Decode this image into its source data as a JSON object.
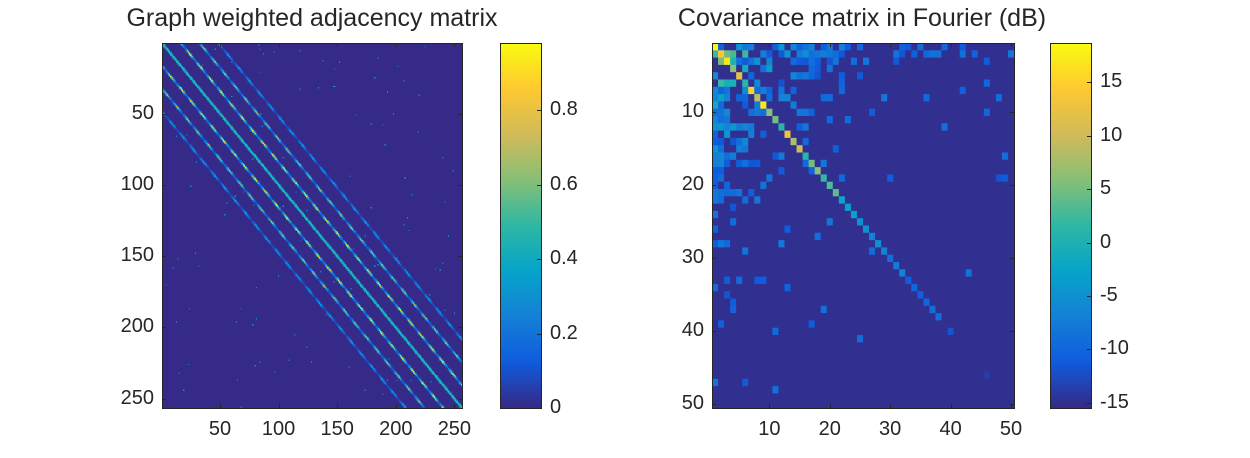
{
  "colors": {
    "colormap": "parula",
    "stops": [
      "#352a87",
      "#0f5cdd",
      "#1481d6",
      "#06a4ca",
      "#2eb7a4",
      "#87bf77",
      "#d1bb59",
      "#fec832",
      "#f9fb0e"
    ],
    "axis": "#262626"
  },
  "chart_data": [
    {
      "type": "heatmap",
      "title": "Graph weighted adjacency matrix",
      "rows": 256,
      "cols": 256,
      "xticks": [
        "50",
        "100",
        "150",
        "200",
        "250"
      ],
      "yticks": [
        "50",
        "100",
        "150",
        "200",
        "250"
      ],
      "xtick_values": [
        50,
        100,
        150,
        200,
        250
      ],
      "ytick_values": [
        50,
        100,
        150,
        200,
        250
      ],
      "structure": "banded symmetric matrix",
      "bands": [
        {
          "offset": 0,
          "value": 0.5
        },
        {
          "offset": 16,
          "value": 0.75
        },
        {
          "offset": 32,
          "value": 0.55
        },
        {
          "offset": 48,
          "value": 0.3
        }
      ],
      "background_value": 0,
      "colorbar": {
        "range": [
          0,
          0.98
        ],
        "ticks": [
          "0",
          "0.2",
          "0.4",
          "0.6",
          "0.8"
        ],
        "tick_values": [
          0,
          0.2,
          0.4,
          0.6,
          0.8
        ]
      }
    },
    {
      "type": "heatmap",
      "title": "Covariance matrix in Fourier (dB)",
      "rows": 50,
      "cols": 50,
      "xticks": [
        "10",
        "20",
        "30",
        "40",
        "50"
      ],
      "yticks": [
        "10",
        "20",
        "30",
        "40",
        "50"
      ],
      "xtick_values": [
        10,
        20,
        30,
        40,
        50
      ],
      "ytick_values": [
        10,
        20,
        30,
        40,
        50
      ],
      "diagonal_db": [
        18.5,
        14,
        17,
        6,
        12,
        1,
        15,
        9,
        17,
        6,
        5,
        1,
        13,
        8,
        10,
        1,
        5,
        6,
        2,
        3,
        4,
        -2,
        -3,
        -3,
        -5,
        -5,
        -7,
        -5,
        -7,
        -9,
        -8,
        -7,
        -11,
        -10,
        -11,
        -10,
        -9,
        -9,
        -15,
        -12,
        -15,
        -15,
        -15,
        -15,
        -15,
        -14,
        -15,
        -15,
        -15,
        -15
      ],
      "background_db": -15,
      "colorbar": {
        "range": [
          -15.5,
          18.7
        ],
        "ticks": [
          "-15",
          "-10",
          "-5",
          "0",
          "5",
          "10",
          "15"
        ],
        "tick_values": [
          -15,
          -10,
          -5,
          0,
          5,
          10,
          15
        ]
      }
    }
  ]
}
